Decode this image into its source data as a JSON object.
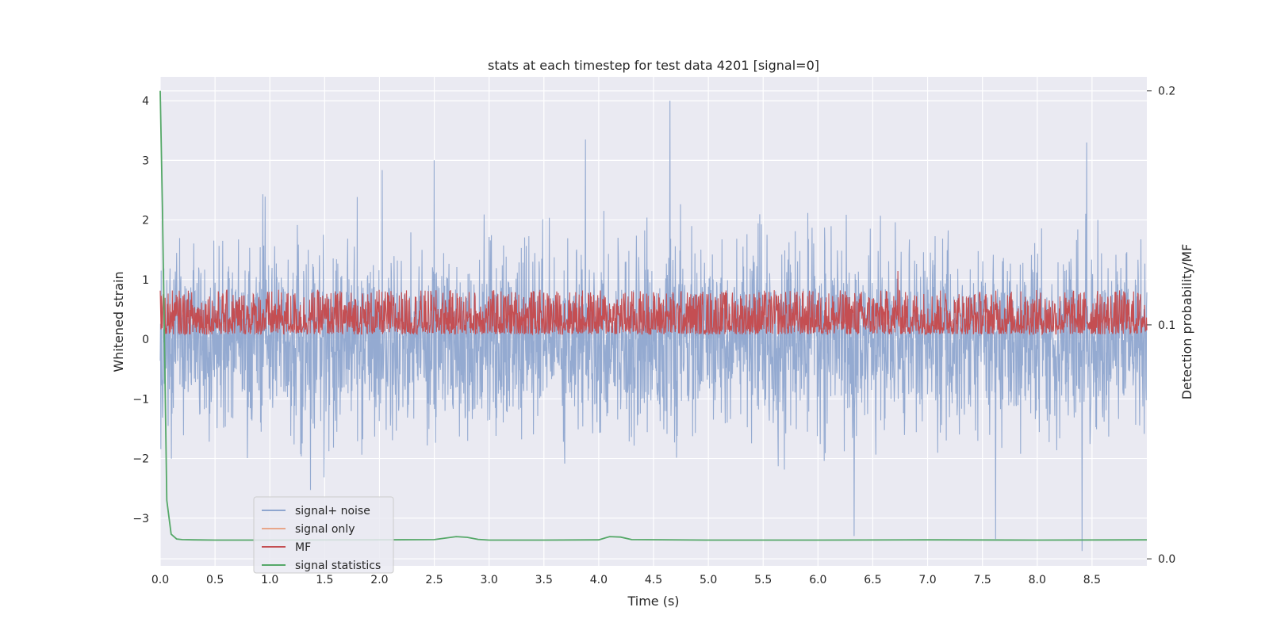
{
  "chart_data": {
    "type": "line",
    "title": "stats at each timestep for test data 4201 [signal=0]",
    "xlabel": "Time (s)",
    "ylabel": "Whitened strain",
    "y2label": "Detection probability/MF",
    "xlim": [
      0.0,
      9.0
    ],
    "ylim": [
      -3.8,
      4.4
    ],
    "y2lim": [
      -0.003,
      0.206
    ],
    "xticks": [
      0.0,
      0.5,
      1.0,
      1.5,
      2.0,
      2.5,
      3.0,
      3.5,
      4.0,
      4.5,
      5.0,
      5.5,
      6.0,
      6.5,
      7.0,
      7.5,
      8.0,
      8.5
    ],
    "xtick_labels": [
      "0.0",
      "0.5",
      "1.0",
      "1.5",
      "2.0",
      "2.5",
      "3.0",
      "3.5",
      "4.0",
      "4.5",
      "5.0",
      "5.5",
      "6.0",
      "6.5",
      "7.0",
      "7.5",
      "8.0",
      "8.5"
    ],
    "yticks": [
      4,
      3,
      2,
      1,
      0,
      -1,
      -2,
      -3
    ],
    "ytick_labels": [
      "4",
      "3",
      "2",
      "1",
      "0",
      "−1",
      "−2",
      "−3"
    ],
    "y2ticks": [
      0.2,
      0.1,
      0.0
    ],
    "y2tick_labels": [
      "0.2",
      "0.1",
      "0.0"
    ],
    "grid": true,
    "legend_position": "lower-left",
    "series": [
      {
        "name": "signal+ noise",
        "axis": "left",
        "color": "#8fa6cf",
        "kind": "noise",
        "amplitude_std": 0.75,
        "peaks": [
          [
            4.65,
            4.0
          ],
          [
            3.88,
            3.35
          ],
          [
            8.45,
            3.3
          ],
          [
            8.41,
            -3.55
          ],
          [
            7.62,
            -3.35
          ],
          [
            6.33,
            -3.3
          ],
          [
            2.5,
            3.0
          ]
        ]
      },
      {
        "name": "signal only",
        "axis": "left",
        "color": "#e8a68a",
        "values": []
      },
      {
        "name": "MF",
        "axis": "right",
        "color": "#c44e52",
        "kind": "band",
        "baseline": 0.1,
        "range": [
          0.096,
          0.115
        ],
        "peak": [
          6.73,
          0.123
        ]
      },
      {
        "name": "signal statistics",
        "axis": "right",
        "color": "#55a868",
        "x": [
          0.0,
          0.02,
          0.04,
          0.06,
          0.1,
          0.15,
          0.2,
          0.3,
          0.5,
          1.0,
          2.0,
          2.5,
          2.7,
          2.8,
          2.9,
          3.0,
          3.5,
          4.0,
          4.1,
          4.2,
          4.3,
          5.0,
          6.0,
          7.0,
          8.0,
          9.0
        ],
        "values": [
          0.2,
          0.15,
          0.09,
          0.025,
          0.0105,
          0.0085,
          0.0082,
          0.0081,
          0.008,
          0.008,
          0.0081,
          0.0082,
          0.0095,
          0.0092,
          0.0083,
          0.008,
          0.008,
          0.0081,
          0.0095,
          0.0093,
          0.0082,
          0.008,
          0.008,
          0.0081,
          0.008,
          0.0081
        ]
      }
    ]
  }
}
